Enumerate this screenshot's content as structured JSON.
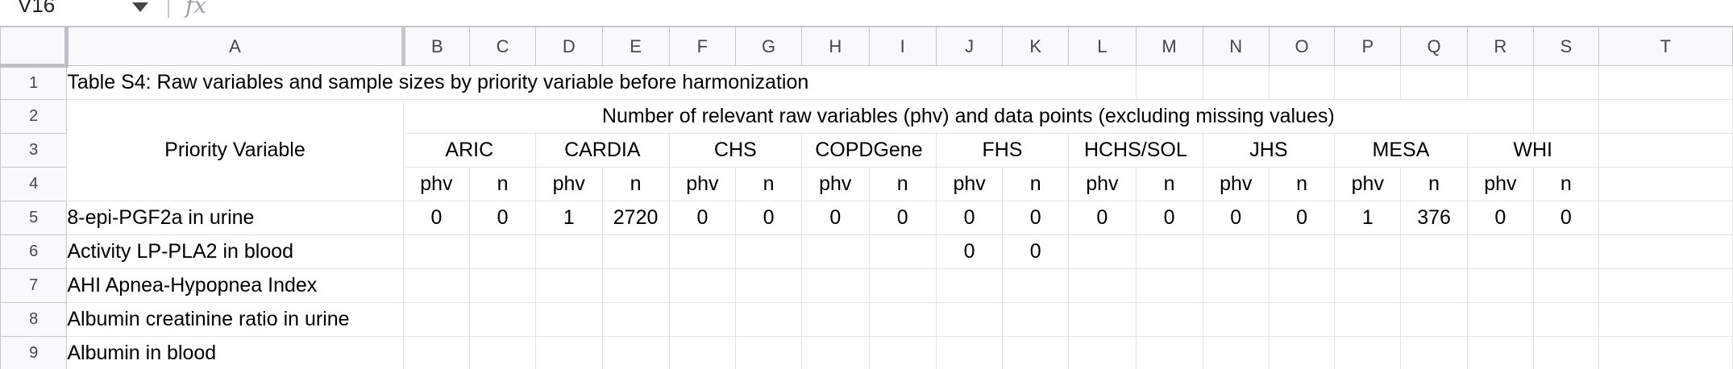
{
  "formula_bar": {
    "name_box": "V16",
    "fx_label": "fx"
  },
  "columns": [
    "A",
    "B",
    "C",
    "D",
    "E",
    "F",
    "G",
    "H",
    "I",
    "J",
    "K",
    "L",
    "M",
    "N",
    "O",
    "P",
    "Q",
    "R",
    "S",
    "T"
  ],
  "rows": [
    "1",
    "2",
    "3",
    "4",
    "5",
    "6",
    "7",
    "8",
    "9"
  ],
  "sheet": {
    "title": "Table S4: Raw variables and sample sizes by priority variable before harmonization",
    "group_header": "Number of relevant raw variables (phv) and data points (excluding missing values)",
    "priority_header": "Priority Variable",
    "cohorts": [
      "ARIC",
      "CARDIA",
      "CHS",
      "COPDGene",
      "FHS",
      "HCHS/SOL",
      "JHS",
      "MESA",
      "WHI"
    ],
    "subheaders": [
      "phv",
      "n",
      "phv",
      "n",
      "phv",
      "n",
      "phv",
      "n",
      "phv",
      "n",
      "phv",
      "n",
      "phv",
      "n",
      "phv",
      "n",
      "phv",
      "n"
    ],
    "data_rows": [
      {
        "label": "8-epi-PGF2a in urine",
        "values": [
          "0",
          "0",
          "1",
          "2720",
          "0",
          "0",
          "0",
          "0",
          "0",
          "0",
          "0",
          "0",
          "0",
          "0",
          "1",
          "376",
          "0",
          "0"
        ]
      },
      {
        "label": "Activity LP-PLA2 in blood",
        "values": [
          "",
          "",
          "",
          "",
          "",
          "",
          "",
          "",
          "0",
          "0",
          "",
          "",
          "",
          "",
          "",
          "",
          "",
          ""
        ]
      },
      {
        "label": "AHI Apnea-Hypopnea Index",
        "values": [
          "",
          "",
          "",
          "",
          "",
          "",
          "",
          "",
          "",
          "",
          "",
          "",
          "",
          "",
          "",
          "",
          "",
          ""
        ]
      },
      {
        "label": "Albumin creatinine ratio in urine",
        "values": [
          "",
          "",
          "",
          "",
          "",
          "",
          "",
          "",
          "",
          "",
          "",
          "",
          "",
          "",
          "",
          "",
          "",
          ""
        ]
      },
      {
        "label": "Albumin in blood",
        "values": [
          "",
          "",
          "",
          "",
          "",
          "",
          "",
          "",
          "",
          "",
          "",
          "",
          "",
          "",
          "",
          "",
          "",
          ""
        ]
      }
    ]
  }
}
